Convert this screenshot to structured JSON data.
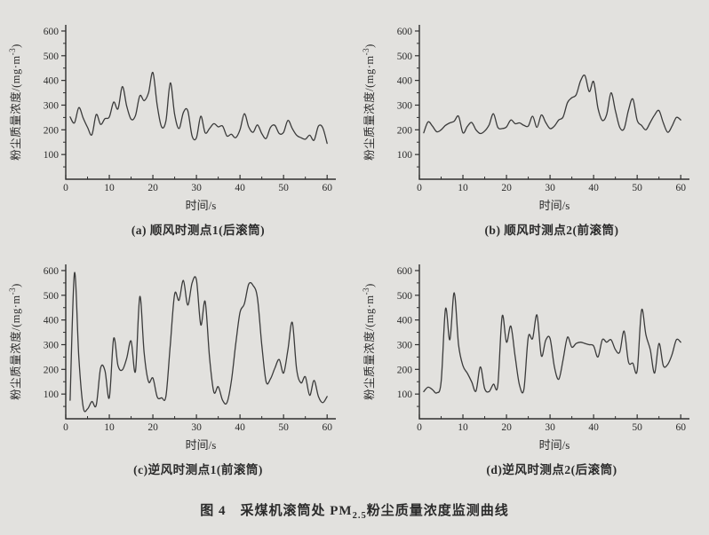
{
  "style": {
    "background": "#e2e1de",
    "line_color": "#3b3b3b",
    "axis_color": "#2f2f2f",
    "text_color": "#2b2b2b"
  },
  "axis_labels": {
    "ylabel_pre": "粉尘质量浓度/(mg·m",
    "ylabel_sup": "-3",
    "ylabel_post": ")",
    "xlabel": "时间/s"
  },
  "figure_caption": {
    "label": "图 4",
    "title_pre": "采煤机滚筒处 PM",
    "title_sub": "2.5",
    "title_post": "粉尘质量浓度监测曲线"
  },
  "chart_data": [
    {
      "type": "line",
      "title": "(a) 顺风时测点1(后滚筒)",
      "xlabel": "时间/s",
      "ylabel": "粉尘质量浓度/(mg·m-3)",
      "x_start": 1,
      "x_step": 1,
      "xlim": [
        0,
        62
      ],
      "ylim": [
        0,
        625
      ],
      "xticks": [
        0,
        10,
        20,
        30,
        40,
        50,
        60
      ],
      "yticks": [
        100,
        200,
        300,
        400,
        500,
        600
      ],
      "x_minor_step": 5,
      "y_minor_step": 50,
      "grid": false,
      "legend": "none",
      "values": [
        252,
        228,
        290,
        248,
        210,
        180,
        262,
        222,
        245,
        252,
        312,
        285,
        375,
        296,
        243,
        258,
        338,
        318,
        350,
        432,
        298,
        212,
        237,
        390,
        262,
        205,
        270,
        278,
        175,
        168,
        255,
        188,
        205,
        225,
        212,
        215,
        175,
        182,
        168,
        200,
        265,
        212,
        190,
        220,
        185,
        165,
        210,
        218,
        185,
        190,
        238,
        205,
        178,
        168,
        162,
        178,
        158,
        215,
        208,
        145
      ]
    },
    {
      "type": "line",
      "title": "(b) 顺风时测点2(前滚筒)",
      "xlabel": "时间/s",
      "ylabel": "粉尘质量浓度/(mg·m-3)",
      "x_start": 1,
      "x_step": 1,
      "xlim": [
        0,
        62
      ],
      "ylim": [
        0,
        625
      ],
      "xticks": [
        0,
        10,
        20,
        30,
        40,
        50,
        60
      ],
      "yticks": [
        100,
        200,
        300,
        400,
        500,
        600
      ],
      "x_minor_step": 5,
      "y_minor_step": 50,
      "grid": false,
      "legend": "none",
      "values": [
        188,
        232,
        215,
        192,
        200,
        218,
        228,
        235,
        255,
        188,
        213,
        230,
        200,
        185,
        195,
        220,
        265,
        210,
        205,
        212,
        240,
        225,
        228,
        218,
        215,
        255,
        210,
        260,
        230,
        205,
        215,
        240,
        252,
        310,
        330,
        342,
        398,
        420,
        355,
        395,
        288,
        238,
        262,
        350,
        278,
        210,
        205,
        280,
        325,
        238,
        218,
        200,
        230,
        260,
        278,
        228,
        190,
        215,
        250,
        240
      ]
    },
    {
      "type": "line",
      "title": "(c)逆风时测点1(前滚筒)",
      "xlabel": "时间/s",
      "ylabel": "粉尘质量浓度/(mg·m-3)",
      "x_start": 1,
      "x_step": 1,
      "xlim": [
        0,
        62
      ],
      "ylim": [
        0,
        625
      ],
      "xticks": [
        0,
        10,
        20,
        30,
        40,
        50,
        60
      ],
      "yticks": [
        100,
        200,
        300,
        400,
        500,
        600
      ],
      "x_minor_step": 5,
      "y_minor_step": 50,
      "grid": false,
      "legend": "none",
      "values": [
        75,
        590,
        250,
        48,
        40,
        70,
        55,
        205,
        195,
        85,
        325,
        215,
        198,
        245,
        315,
        192,
        495,
        265,
        150,
        165,
        88,
        85,
        92,
        300,
        505,
        480,
        560,
        460,
        550,
        562,
        380,
        475,
        250,
        108,
        130,
        75,
        65,
        150,
        300,
        430,
        465,
        545,
        540,
        490,
        300,
        150,
        162,
        205,
        240,
        185,
        280,
        390,
        200,
        145,
        170,
        95,
        155,
        90,
        65,
        90
      ]
    },
    {
      "type": "line",
      "title": "(d)逆风时测点2(后滚筒)",
      "xlabel": "时间/s",
      "ylabel": "粉尘质量浓度/(mg·m-3)",
      "x_start": 1,
      "x_step": 1,
      "xlim": [
        0,
        62
      ],
      "ylim": [
        0,
        625
      ],
      "xticks": [
        0,
        10,
        20,
        30,
        40,
        50,
        60
      ],
      "yticks": [
        100,
        200,
        300,
        400,
        500,
        600
      ],
      "x_minor_step": 5,
      "y_minor_step": 50,
      "grid": false,
      "legend": "none",
      "values": [
        110,
        128,
        118,
        105,
        150,
        445,
        320,
        510,
        300,
        215,
        185,
        150,
        112,
        210,
        122,
        110,
        140,
        135,
        415,
        310,
        375,
        250,
        135,
        120,
        330,
        325,
        420,
        255,
        318,
        325,
        210,
        160,
        240,
        330,
        290,
        305,
        310,
        305,
        300,
        295,
        250,
        320,
        310,
        320,
        280,
        270,
        355,
        230,
        225,
        195,
        440,
        340,
        280,
        185,
        305,
        215,
        220,
        260,
        320,
        310
      ]
    }
  ]
}
